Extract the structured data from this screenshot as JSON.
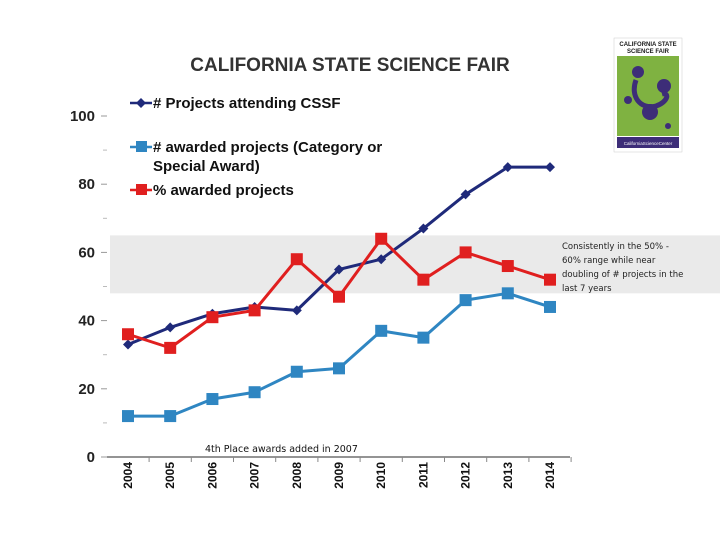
{
  "chart_data": {
    "type": "line",
    "title": "CALIFORNIA STATE SCIENCE FAIR",
    "xlabel": "",
    "ylabel": "",
    "ylim": [
      0,
      100
    ],
    "yticks": [
      "0",
      "20",
      "40",
      "60",
      "80",
      "100"
    ],
    "categories": [
      "2004",
      "2005",
      "2006",
      "2007",
      "2008",
      "2009",
      "2010",
      "2011",
      "2012",
      "2013",
      "2014"
    ],
    "series": [
      {
        "name": "# Projects attending CSSF",
        "color": "#1f2a7a",
        "marker": "diamond",
        "values": [
          33,
          38,
          42,
          44,
          43,
          55,
          58,
          67,
          77,
          85,
          85
        ]
      },
      {
        "name": "# awarded projects (Category or Special Award)",
        "color": "#2f86c2",
        "marker": "square",
        "values": [
          12,
          12,
          17,
          19,
          25,
          26,
          37,
          35,
          46,
          48,
          44
        ]
      },
      {
        "name": "% awarded projects",
        "color": "#e01f1f",
        "marker": "square",
        "values": [
          36,
          32,
          41,
          43,
          58,
          47,
          64,
          52,
          60,
          56,
          52
        ]
      }
    ],
    "shaded_band": {
      "from": 48,
      "to": 65,
      "color": "#eaeaea"
    },
    "annotations": {
      "band_note": [
        "Consistently in the 50% -",
        "60% range while near",
        "doubling of # projects in the",
        "last 7 years"
      ],
      "bottom_note": "4th Place awards added in 2007"
    }
  },
  "logo": {
    "line1": "CALIFORNIA STATE",
    "line2": "SCIENCE FAIR",
    "org": "CaliforniaScienceCenter",
    "bg_color": "#7fb241",
    "mark_color": "#3d2d78"
  }
}
